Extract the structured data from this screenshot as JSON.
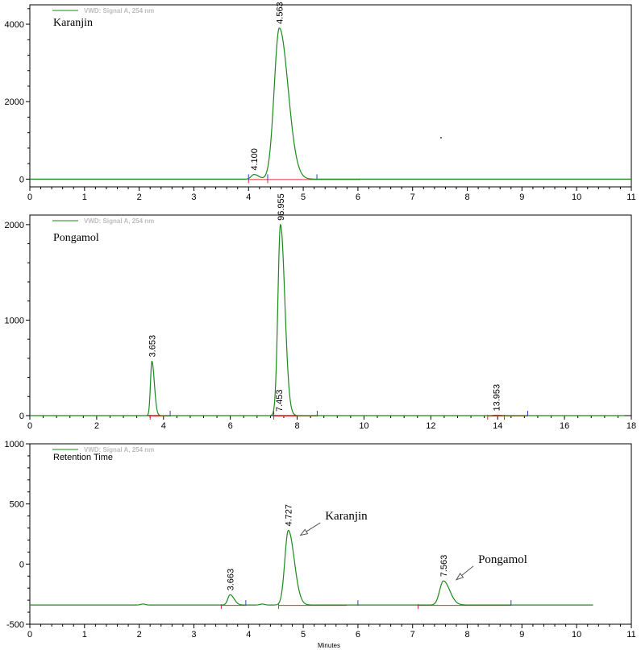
{
  "chart_data": [
    {
      "type": "line",
      "title": "Karanjin",
      "legend": "VWD: Signal A, 254 nm",
      "xlim": [
        0,
        11
      ],
      "ylim": [
        -200,
        4500
      ],
      "xticks": [
        0,
        1,
        2,
        3,
        4,
        5,
        6,
        7,
        8,
        9,
        10,
        11
      ],
      "yticks": [
        0,
        2000,
        4000
      ],
      "xlabel": "",
      "ylabel": "",
      "color": "#1a8a1a",
      "peaks": [
        {
          "rt": 4.1,
          "label": "4.100",
          "height": 120,
          "width": 0.06
        },
        {
          "rt": 4.563,
          "label": "4.563",
          "height": 3900,
          "width": 0.11
        }
      ],
      "baseline_marks": [
        4.0,
        4.35,
        5.25
      ],
      "integration_segments": [
        [
          4.0,
          4.35
        ],
        [
          4.35,
          6.05
        ]
      ],
      "extent": [
        0,
        11
      ]
    },
    {
      "type": "line",
      "title": "Pongamol",
      "legend": "VWD: Signal A, 254 nm",
      "xlim": [
        0,
        18
      ],
      "ylim": [
        0,
        2100
      ],
      "xticks": [
        0,
        2,
        4,
        6,
        8,
        10,
        12,
        14,
        16,
        18
      ],
      "yticks": [
        0,
        1000,
        2000
      ],
      "xlabel": "",
      "ylabel": "",
      "color": "#1a8a1a",
      "peaks": [
        {
          "rt": 3.653,
          "label": "3.653",
          "height": 570,
          "width": 0.05
        },
        {
          "rt": 7.453,
          "label": "7.453",
          "height": 0,
          "width": 0.05
        },
        {
          "rt": 7.5,
          "label": "96.955",
          "height": 2000,
          "width": 0.09
        },
        {
          "rt": 13.953,
          "label": "13.953",
          "height": 4,
          "width": 0.1
        }
      ],
      "baseline_marks": [
        4.2,
        7.3,
        8.6,
        14.9
      ],
      "integration_segments": [
        [
          3.6,
          4.2
        ],
        [
          7.3,
          8.6
        ],
        [
          13.7,
          14.2
        ],
        [
          14.2,
          14.9
        ]
      ],
      "extent": [
        0,
        17.8
      ]
    },
    {
      "type": "line",
      "title": "Retention Time",
      "legend": "VWD: Signal A, 254 nm",
      "xlim": [
        0,
        11
      ],
      "ylim": [
        -500,
        1000
      ],
      "xticks": [
        0,
        1,
        2,
        3,
        4,
        5,
        6,
        7,
        8,
        9,
        10,
        11
      ],
      "yticks": [
        -500,
        0,
        500,
        1000
      ],
      "xlabel": "Minutes",
      "ylabel": "",
      "color": "#1a8a1a",
      "baseline": -340,
      "peaks": [
        {
          "rt": 3.663,
          "label": "3.663",
          "height": 85,
          "width": 0.05
        },
        {
          "rt": 4.727,
          "label": "4.727",
          "height": 620,
          "width": 0.075
        },
        {
          "rt": 7.563,
          "label": "7.563",
          "height": 200,
          "width": 0.08
        }
      ],
      "bumps": [
        2.07,
        4.25
      ],
      "baseline_marks": [
        3.95,
        6.0,
        8.8
      ],
      "integration_segments": [
        [
          3.5,
          3.95
        ],
        [
          4.55,
          5.8
        ],
        [
          7.1,
          8.8
        ]
      ],
      "annotations": [
        {
          "text": "Karanjin",
          "x": 5.4,
          "y": 370,
          "arrow_to": [
            4.95,
            240
          ]
        },
        {
          "text": "Pongamol",
          "x": 8.2,
          "y": 10,
          "arrow_to": [
            7.8,
            -130
          ]
        }
      ],
      "extent": [
        0,
        10.3
      ]
    }
  ]
}
